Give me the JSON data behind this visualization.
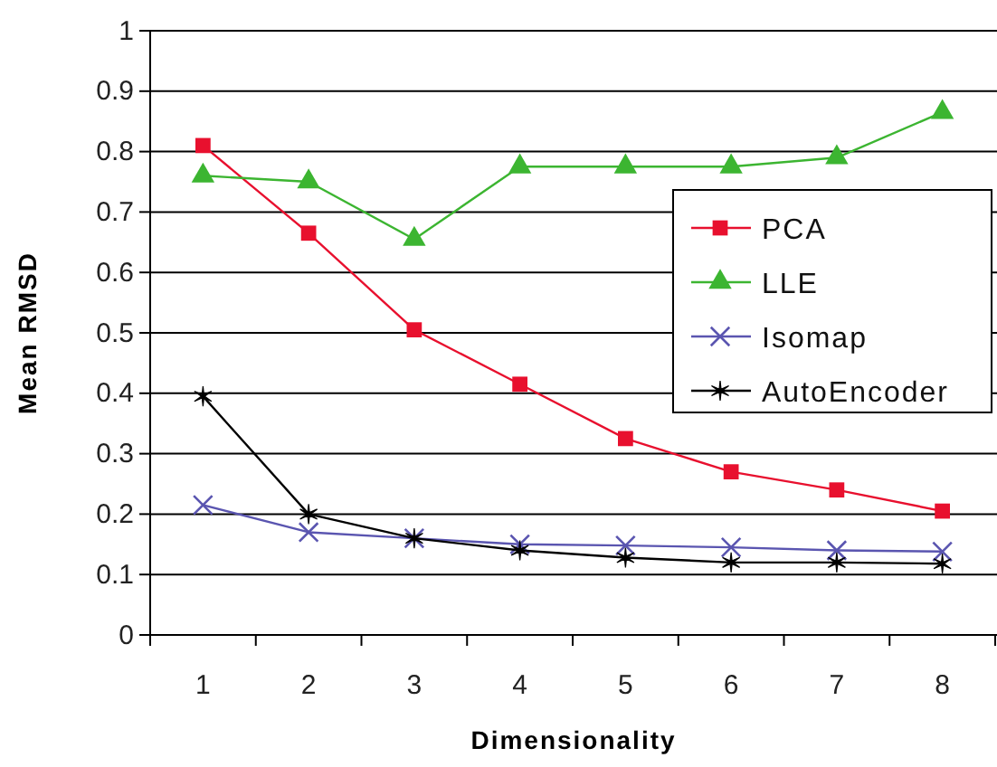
{
  "chart_data": {
    "type": "line",
    "xlabel": "Dimensionality",
    "ylabel": "Mean RMSD",
    "categories": [
      "1",
      "2",
      "3",
      "4",
      "5",
      "6",
      "7",
      "8"
    ],
    "ylim": [
      0,
      1
    ],
    "yticks": [
      0,
      0.1,
      0.2,
      0.3,
      0.4,
      0.5,
      0.6,
      0.7,
      0.8,
      0.9,
      1
    ],
    "grid": "y",
    "legend": "right",
    "series": [
      {
        "name": "PCA",
        "color": "#e8102e",
        "marker": "square",
        "values": [
          0.81,
          0.665,
          0.505,
          0.415,
          0.325,
          0.27,
          0.24,
          0.205
        ]
      },
      {
        "name": "LLE",
        "color": "#3cb531",
        "marker": "triangle",
        "values": [
          0.76,
          0.75,
          0.655,
          0.775,
          0.775,
          0.775,
          0.79,
          0.865
        ]
      },
      {
        "name": "Isomap",
        "color": "#5a55b0",
        "marker": "cross",
        "values": [
          0.215,
          0.17,
          0.16,
          0.15,
          0.148,
          0.145,
          0.14,
          0.138
        ]
      },
      {
        "name": "AutoEncoder",
        "color": "#000000",
        "marker": "cross",
        "values": [
          0.395,
          0.2,
          0.16,
          0.14,
          0.128,
          0.12,
          0.12,
          0.118
        ]
      }
    ]
  }
}
